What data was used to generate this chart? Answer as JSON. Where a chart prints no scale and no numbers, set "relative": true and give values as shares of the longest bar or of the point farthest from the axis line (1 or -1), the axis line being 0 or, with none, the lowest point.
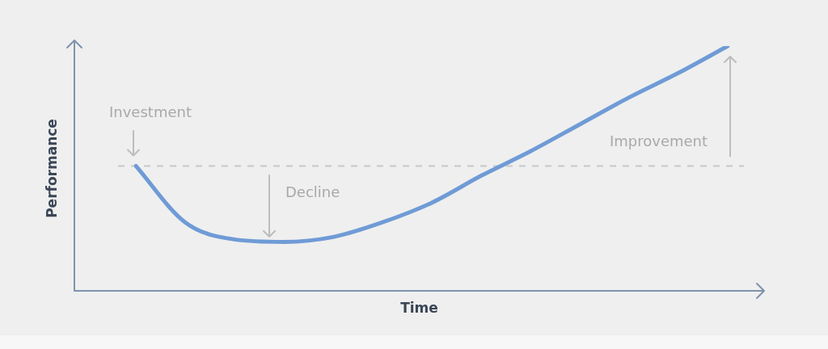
{
  "chart_data": {
    "type": "line",
    "xlabel": "Time",
    "ylabel": "Performance",
    "relative": true,
    "marker": "none",
    "categories": [
      null,
      null,
      null,
      null,
      null,
      null,
      null,
      null,
      null,
      null,
      null,
      null,
      null
    ],
    "series": [
      {
        "color": "#6f9bd6",
        "values": [
          0.51,
          0.28,
          0.21,
          0.2,
          0.22,
          0.28,
          0.36,
          0.47,
          0.57,
          0.68,
          0.79,
          0.89,
          1
        ]
      }
    ],
    "ref_lines": [
      {
        "axis": "y",
        "value": 0.51,
        "color": "#c8c8c8",
        "line_style": "dashed"
      }
    ],
    "annotations": [
      "Investment",
      "Decline",
      "Improvement"
    ]
  }
}
